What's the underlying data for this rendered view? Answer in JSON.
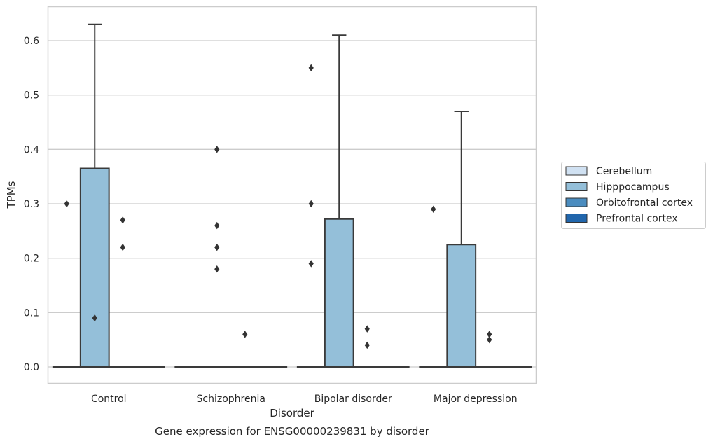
{
  "chart_data": {
    "type": "box",
    "caption": "Gene expression for ENSG00000239831 by disorder",
    "xlabel": "Disorder",
    "ylabel": "TPMs",
    "ylim": [
      -0.03,
      0.66
    ],
    "yticks": [
      0.0,
      0.1,
      0.2,
      0.3,
      0.4,
      0.5,
      0.6
    ],
    "ytick_labels": [
      "0.0",
      "0.1",
      "0.2",
      "0.3",
      "0.4",
      "0.5",
      "0.6"
    ],
    "grid": "horizontal",
    "legend_position": "right",
    "categories": [
      "Control",
      "Schizophrenia",
      "Bipolar disorder",
      "Major depression"
    ],
    "series": [
      {
        "name": "Cerebellum",
        "color": "#d0e1f2",
        "boxes": [
          {
            "q1": 0,
            "median": 0,
            "q3": 0,
            "whisker_low": 0,
            "whisker_high": 0,
            "outliers": []
          },
          {
            "q1": 0,
            "median": 0,
            "q3": 0,
            "whisker_low": 0,
            "whisker_high": 0,
            "outliers": []
          },
          {
            "q1": 0,
            "median": 0,
            "q3": 0,
            "whisker_low": 0,
            "whisker_high": 0,
            "outliers": []
          },
          {
            "q1": 0,
            "median": 0,
            "q3": 0,
            "whisker_low": 0,
            "whisker_high": 0,
            "outliers": []
          }
        ]
      },
      {
        "name": "Hipppocampus",
        "color": "#94bfd9",
        "boxes": [
          {
            "q1": 0,
            "median": 0,
            "q3": 0.365,
            "whisker_low": 0,
            "whisker_high": 0.63,
            "outliers": []
          },
          {
            "q1": 0,
            "median": 0,
            "q3": 0,
            "whisker_low": 0,
            "whisker_high": 0,
            "outliers": [
              0.26,
              0.18,
              0.4,
              0.22
            ]
          },
          {
            "q1": 0,
            "median": 0,
            "q3": 0.272,
            "whisker_low": 0,
            "whisker_high": 0.61,
            "outliers": []
          },
          {
            "q1": 0,
            "median": 0,
            "q3": 0.225,
            "whisker_low": 0,
            "whisker_high": 0.47,
            "outliers": []
          }
        ]
      },
      {
        "name": "Orbitofrontal cortex",
        "color": "#4a8cbf",
        "boxes": [
          {
            "q1": 0,
            "median": 0,
            "q3": 0,
            "whisker_low": 0,
            "whisker_high": 0,
            "outliers": [
              0.27,
              0.22
            ]
          },
          {
            "q1": 0,
            "median": 0,
            "q3": 0,
            "whisker_low": 0,
            "whisker_high": 0,
            "outliers": [
              0.06
            ]
          },
          {
            "q1": 0,
            "median": 0,
            "q3": 0,
            "whisker_low": 0,
            "whisker_high": 0,
            "outliers": [
              0.07,
              0.04
            ]
          },
          {
            "q1": 0,
            "median": 0,
            "q3": 0,
            "whisker_low": 0,
            "whisker_high": 0,
            "outliers": [
              0.06,
              0.05
            ]
          }
        ]
      },
      {
        "name": "Prefrontal cortex",
        "color": "#2166ac",
        "boxes": [
          {
            "q1": 0,
            "median": 0,
            "q3": 0,
            "whisker_low": 0,
            "whisker_high": 0,
            "outliers": []
          },
          {
            "q1": 0,
            "median": 0,
            "q3": 0,
            "whisker_low": 0,
            "whisker_high": 0,
            "outliers": []
          },
          {
            "q1": 0,
            "median": 0,
            "q3": 0,
            "whisker_low": 0,
            "whisker_high": 0,
            "outliers": []
          },
          {
            "q1": 0,
            "median": 0,
            "q3": 0,
            "whisker_low": 0,
            "whisker_high": 0,
            "outliers": []
          }
        ]
      }
    ],
    "extra_outliers": [
      {
        "category": "Control",
        "series": "Cerebellum",
        "values": [
          0.3
        ]
      },
      {
        "category": "Control",
        "series": "Hipppocampus",
        "values": [
          0.09
        ]
      },
      {
        "category": "Bipolar disorder",
        "series": "Cerebellum",
        "values": [
          0.55,
          0.3,
          0.19
        ]
      },
      {
        "category": "Major depression",
        "series": "Cerebellum",
        "values": [
          0.29
        ]
      }
    ]
  }
}
